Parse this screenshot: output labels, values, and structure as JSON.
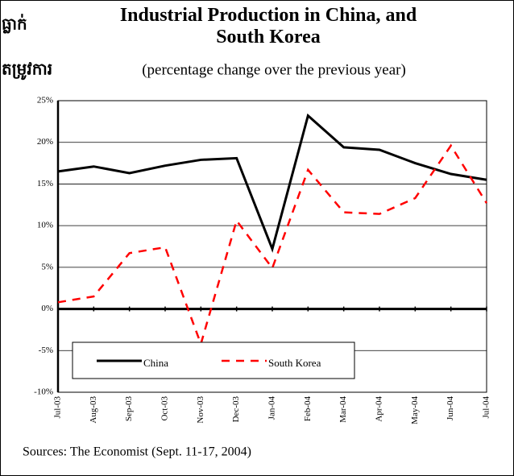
{
  "side_text": [
    "ធ្លាក់",
    "តម្រូវការ"
  ],
  "source": "Sources: The Economist (Sept. 11-17, 2004)",
  "chart_data": {
    "type": "line",
    "title": "Industrial Production in China, and South Korea",
    "subtitle": "(percentage change over the previous year)",
    "categories": [
      "Jul-03",
      "Aug-03",
      "Sep-03",
      "Oct-03",
      "Nov-03",
      "Dec-03",
      "Jan-04",
      "Feb-04",
      "Mar-04",
      "Apr-04",
      "May-04",
      "Jun-04",
      "Jul-04"
    ],
    "series": [
      {
        "name": "China",
        "color": "#000000",
        "dash": false,
        "values": [
          16.5,
          17.1,
          16.3,
          17.2,
          17.9,
          18.1,
          7.2,
          23.2,
          19.4,
          19.1,
          17.5,
          16.2,
          15.5
        ]
      },
      {
        "name": "South Korea",
        "color": "#ff0000",
        "dash": true,
        "values": [
          0.8,
          1.5,
          6.7,
          7.4,
          -4.2,
          10.6,
          4.9,
          16.7,
          11.6,
          11.4,
          13.3,
          19.6,
          12.7
        ]
      }
    ],
    "ylim": [
      -10,
      25
    ],
    "yticks": [
      {
        "value": -10,
        "label": "-10%"
      },
      {
        "value": -5,
        "label": "-5%"
      },
      {
        "value": 0,
        "label": "0%"
      },
      {
        "value": 5,
        "label": "5%"
      },
      {
        "value": 10,
        "label": "10%"
      },
      {
        "value": 15,
        "label": "15%"
      },
      {
        "value": 20,
        "label": "20%"
      },
      {
        "value": 25,
        "label": "25%"
      }
    ],
    "grid": true
  }
}
